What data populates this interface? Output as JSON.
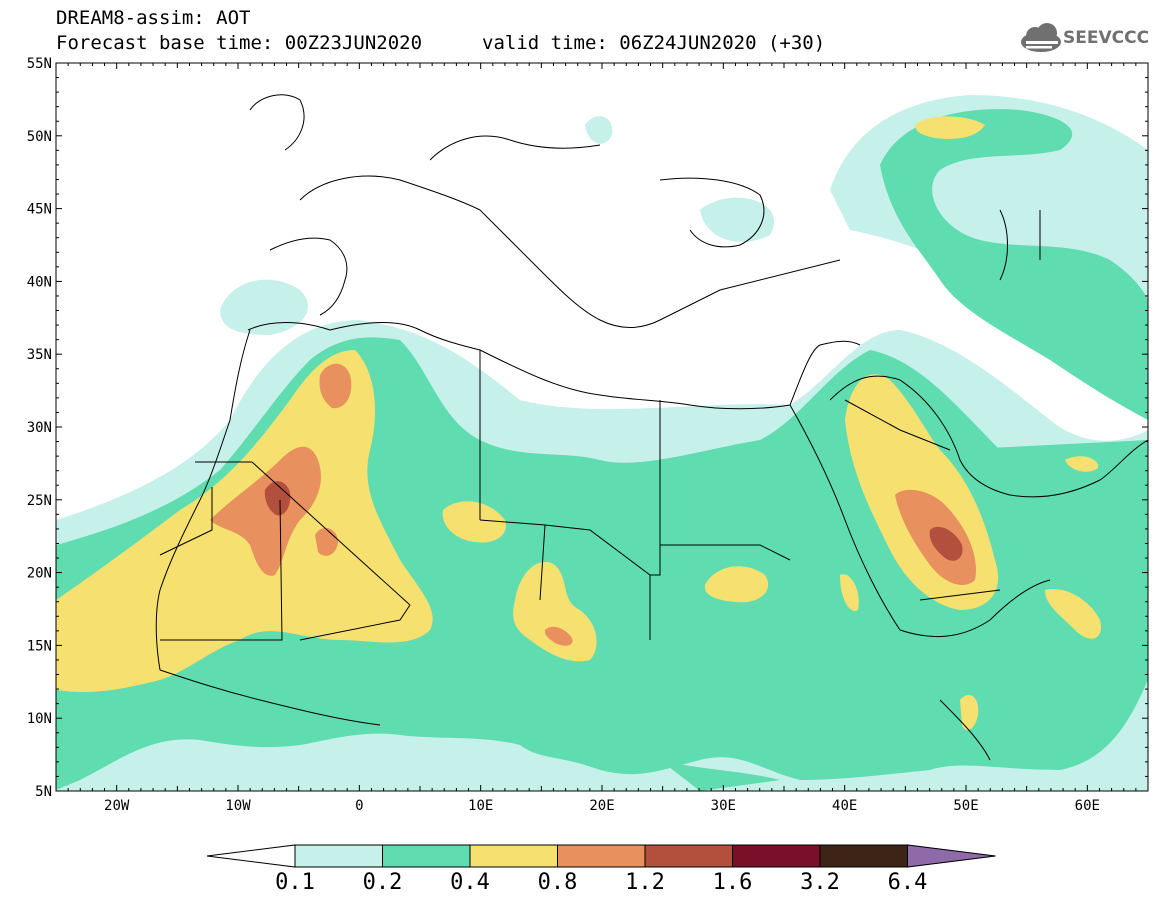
{
  "header": {
    "line1": "DREAM8-assim: AOT",
    "line2": "Forecast base time: 00Z23JUN2020",
    "valid": "valid time: 06Z24JUN2020 (+30)",
    "logo_text": "SEEVCCC"
  },
  "map": {
    "variable": "AOT",
    "lon_range": [
      -25,
      65
    ],
    "lat_range": [
      5,
      55
    ],
    "lat_labels": [
      "55N",
      "50N",
      "45N",
      "40N",
      "35N",
      "30N",
      "25N",
      "20N",
      "15N",
      "10N",
      "5N"
    ],
    "lon_labels": [
      "20W",
      "10W",
      "0",
      "10E",
      "20E",
      "30E",
      "40E",
      "50E",
      "60E"
    ]
  },
  "legend": {
    "levels": [
      "0.1",
      "0.2",
      "0.4",
      "0.8",
      "1.2",
      "1.6",
      "3.2",
      "6.4"
    ],
    "colors": [
      "#ffffff",
      "#c6f0ea",
      "#5fdcb0",
      "#f6e170",
      "#e8905e",
      "#b2503d",
      "#7a0f2a",
      "#3e2416",
      "#8f6aa8"
    ]
  }
}
